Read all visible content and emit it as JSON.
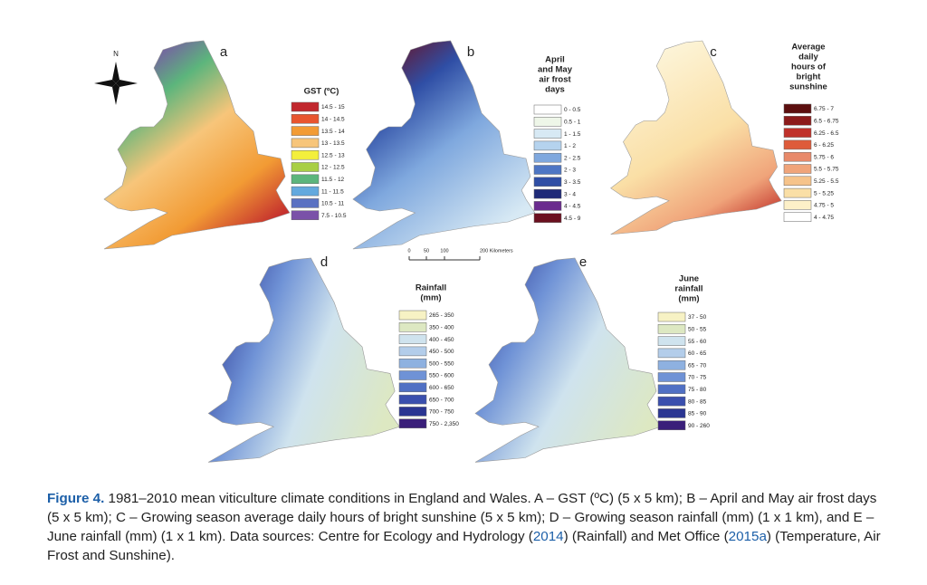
{
  "compass": "N",
  "scale_bar": [
    "0",
    "50",
    "100",
    "200 Kilometers"
  ],
  "panels": [
    {
      "letter": "a",
      "legend_title": [
        "GST (ºC)"
      ],
      "legend": [
        {
          "label": "14.5 - 15",
          "color": "#c1272d"
        },
        {
          "label": "14 - 14.5",
          "color": "#e8552f"
        },
        {
          "label": "13.5 - 14",
          "color": "#f29b34"
        },
        {
          "label": "13 - 13.5",
          "color": "#f7c57a"
        },
        {
          "label": "12.5 - 13",
          "color": "#f3ef3c"
        },
        {
          "label": "12 - 12.5",
          "color": "#a8cf45"
        },
        {
          "label": "11.5 - 12",
          "color": "#5cb57c"
        },
        {
          "label": "11 - 11.5",
          "color": "#63a9de"
        },
        {
          "label": "10.5 - 11",
          "color": "#5a71c2"
        },
        {
          "label": "7.5 - 10.5",
          "color": "#7a51a8"
        }
      ]
    },
    {
      "letter": "b",
      "legend_title": [
        "April",
        "and May",
        "air frost",
        "days"
      ],
      "legend": [
        {
          "label": "0 - 0.5",
          "color": "#ffffff"
        },
        {
          "label": "0.5 - 1",
          "color": "#eef6e8"
        },
        {
          "label": "1 - 1.5",
          "color": "#d7e9f4"
        },
        {
          "label": "1 - 2",
          "color": "#b5d3ee"
        },
        {
          "label": "2 - 2.5",
          "color": "#7fa8de"
        },
        {
          "label": "2 - 3",
          "color": "#4e76c4"
        },
        {
          "label": "3 - 3.5",
          "color": "#2f4ea5"
        },
        {
          "label": "3 - 4",
          "color": "#1f2a78"
        },
        {
          "label": "4 - 4.5",
          "color": "#6a2b8e"
        },
        {
          "label": "4.5 - 9",
          "color": "#6b1020"
        }
      ]
    },
    {
      "letter": "c",
      "legend_title": [
        "Average",
        "daily",
        "hours of",
        "bright",
        "sunshine"
      ],
      "legend": [
        {
          "label": "6.75 - 7",
          "color": "#5c0f0f"
        },
        {
          "label": "6.5 - 6.75",
          "color": "#8c1b1b"
        },
        {
          "label": "6.25 - 6.5",
          "color": "#c0312a"
        },
        {
          "label": "6 - 6.25",
          "color": "#de5b3a"
        },
        {
          "label": "5.75 - 6",
          "color": "#e88a6a"
        },
        {
          "label": "5.5 - 5.75",
          "color": "#f0a47a"
        },
        {
          "label": "5.25 - 5.5",
          "color": "#f6c38a"
        },
        {
          "label": "5 - 5.25",
          "color": "#fadfa6"
        },
        {
          "label": "4.75 - 5",
          "color": "#fdf0c8"
        },
        {
          "label": "4 - 4.75",
          "color": "#ffffff"
        }
      ]
    },
    {
      "letter": "d",
      "legend_title": [
        "Rainfall",
        "(mm)"
      ],
      "legend": [
        {
          "label": "265 - 350",
          "color": "#f7f2c4"
        },
        {
          "label": "350 - 400",
          "color": "#dde8c2"
        },
        {
          "label": "400 - 450",
          "color": "#cfe3ee"
        },
        {
          "label": "450 - 500",
          "color": "#b3cdea"
        },
        {
          "label": "500 - 550",
          "color": "#8eb1e0"
        },
        {
          "label": "550 - 600",
          "color": "#6f92d6"
        },
        {
          "label": "600 - 650",
          "color": "#5070c4"
        },
        {
          "label": "650 - 700",
          "color": "#3a4fae"
        },
        {
          "label": "700 - 750",
          "color": "#2a3592"
        },
        {
          "label": "750 - 2,350",
          "color": "#3a1f7a"
        }
      ]
    },
    {
      "letter": "e",
      "legend_title": [
        "June",
        "rainfall",
        "(mm)"
      ],
      "legend": [
        {
          "label": "37 - 50",
          "color": "#f7f2c4"
        },
        {
          "label": "50 - 55",
          "color": "#dde8c2"
        },
        {
          "label": "55 - 60",
          "color": "#cfe3ee"
        },
        {
          "label": "60 - 65",
          "color": "#b3cdea"
        },
        {
          "label": "65 - 70",
          "color": "#8eb1e0"
        },
        {
          "label": "70 - 75",
          "color": "#6f92d6"
        },
        {
          "label": "75 - 80",
          "color": "#5070c4"
        },
        {
          "label": "80 - 85",
          "color": "#3a4fae"
        },
        {
          "label": "85 - 90",
          "color": "#2a3592"
        },
        {
          "label": "90 - 260",
          "color": "#3a1f7a"
        }
      ]
    }
  ],
  "caption": {
    "label": "Figure 4.",
    "parts": [
      {
        "text": " 1981–2010 mean viticulture climate conditions in England and Wales. A – GST (ºC) (5 x 5 km); B – April and May air frost days (5 x 5 km); C – Growing season average daily hours of bright sunshine (5 x 5 km); D – Growing season rainfall (mm) (1 x 1 km), and E – June rainfall (mm) (1 x 1 km). Data sources: Centre for Ecology and Hydrology ("
      },
      {
        "text": "2014",
        "cite": true
      },
      {
        "text": ") (Rainfall) and Met Office ("
      },
      {
        "text": "2015a",
        "cite": true
      },
      {
        "text": ") (Temperature, Air Frost and Sunshine)."
      }
    ]
  }
}
